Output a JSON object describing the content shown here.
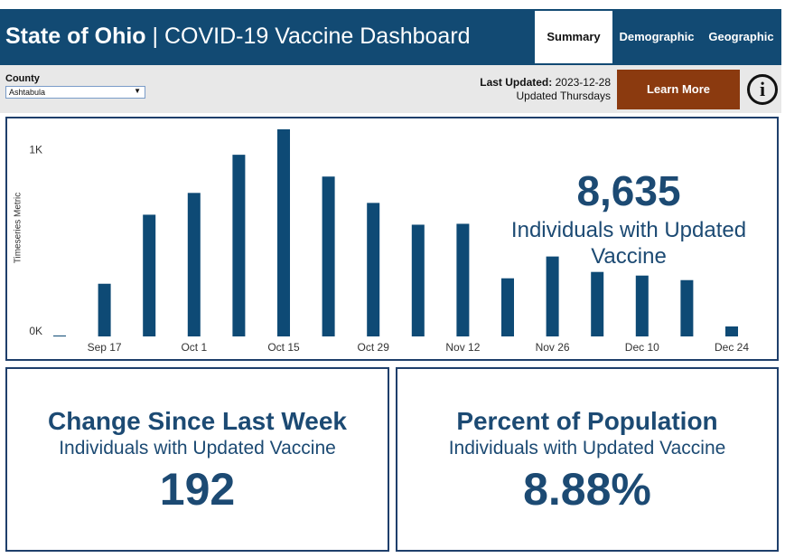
{
  "header": {
    "title_prefix": "State of Ohio",
    "title": "| COVID-19 Vaccine Dashboard",
    "tabs": [
      "Summary",
      "Demographic",
      "Geographic"
    ]
  },
  "filter": {
    "label": "County",
    "value": "Ashtabula"
  },
  "update_info": {
    "label": "Last Updated:",
    "date": "2023-12-28",
    "note": "Updated Thursdays"
  },
  "learn_more": "Learn More",
  "info_icon": "i",
  "chart_data": {
    "type": "bar",
    "y_label": "Timeseries Metric",
    "color": "#0e4a75",
    "categories": [
      null,
      "Sep 17",
      null,
      "Oct 1",
      null,
      "Oct 15",
      null,
      "Oct 29",
      null,
      "Nov 12",
      null,
      "Nov 26",
      null,
      "Dec 10",
      null,
      "Dec 24"
    ],
    "values": [
      5,
      290,
      670,
      790,
      1000,
      1140,
      880,
      735,
      615,
      620,
      320,
      440,
      355,
      335,
      310,
      55
    ],
    "ylim": [
      0,
      1150
    ],
    "yticks": [
      {
        "value": 0,
        "label": "0K"
      },
      {
        "value": 1000,
        "label": "1K"
      }
    ],
    "grid": false,
    "headline": {
      "value": "8,635",
      "caption": "Individuals with Updated Vaccine"
    }
  },
  "cards": [
    {
      "title": "Change Since Last Week",
      "subtitle": "Individuals with Updated Vaccine",
      "value": "192"
    },
    {
      "title": "Percent of Population",
      "subtitle": "Individuals with Updated Vaccine",
      "value": "8.88%"
    }
  ]
}
